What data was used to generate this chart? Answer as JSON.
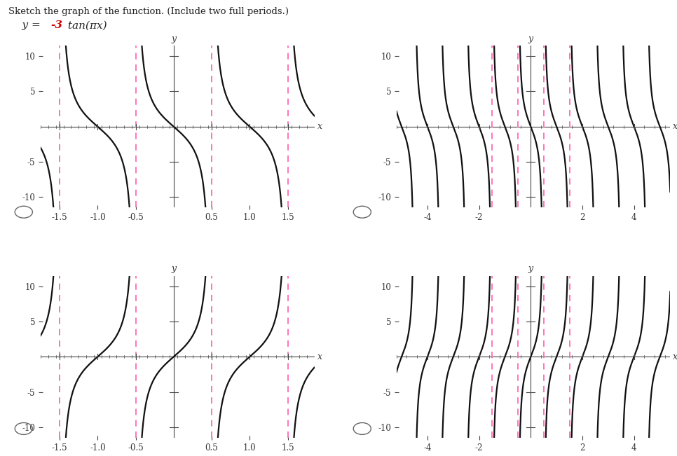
{
  "title_text": "Sketch the graph of the function. (Include two full periods.)",
  "formula_prefix": "    y = ",
  "formula_neg3": "-3",
  "formula_suffix": " tan(πx)",
  "formula_color": "#cc0000",
  "bg_color": "#ffffff",
  "curve_color": "#111111",
  "asymptote_color": "#ff69b4",
  "ylim": [
    -11.5,
    11.5
  ],
  "yticks": [
    -10,
    -5,
    5,
    10
  ],
  "panels": [
    {
      "xlim": [
        -1.75,
        1.85
      ],
      "xticks": [
        -1.5,
        -1.0,
        -0.5,
        0.5,
        1.0,
        1.5
      ],
      "xtick_labels": [
        "-1.5",
        "-1.0",
        "-0.5",
        "0.5",
        "1.0",
        "1.5"
      ],
      "asymptotes": [
        -1.5,
        -0.5,
        0.5,
        1.5
      ],
      "amplitude": -3,
      "b": 1.0,
      "row": 0,
      "col": 0
    },
    {
      "xlim": [
        -5.2,
        5.4
      ],
      "xticks": [
        -4,
        -2,
        2,
        4
      ],
      "xtick_labels": [
        "-4",
        "-2",
        "2",
        "4"
      ],
      "asymptotes": [
        -1.5,
        -0.5,
        0.5,
        1.5
      ],
      "amplitude": -3,
      "b": 1.0,
      "row": 0,
      "col": 1
    },
    {
      "xlim": [
        -1.75,
        1.85
      ],
      "xticks": [
        -1.5,
        -1.0,
        -0.5,
        0.5,
        1.0,
        1.5
      ],
      "xtick_labels": [
        "-1.5",
        "-1.0",
        "-0.5",
        "0.5",
        "1.0",
        "1.5"
      ],
      "asymptotes": [
        -1.5,
        -0.5,
        0.5,
        1.5
      ],
      "amplitude": 3,
      "b": 1.0,
      "row": 1,
      "col": 0
    },
    {
      "xlim": [
        -5.2,
        5.4
      ],
      "xticks": [
        -4,
        -2,
        2,
        4
      ],
      "xtick_labels": [
        "-4",
        "-2",
        "2",
        "4"
      ],
      "asymptotes": [
        -1.5,
        -0.5,
        0.5,
        1.5
      ],
      "amplitude": 3,
      "b": 1.0,
      "row": 1,
      "col": 1
    }
  ]
}
